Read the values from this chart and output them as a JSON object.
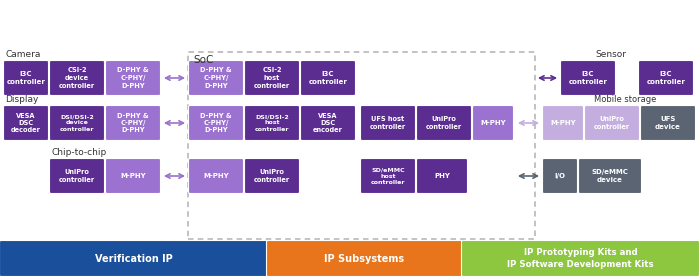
{
  "title": "SoC",
  "dark_purple": "#5c2d91",
  "mid_purple": "#9b72cf",
  "light_purple": "#c4aee0",
  "dark_gray": "#5a6472",
  "blue_bar": "#1a4f9c",
  "orange_bar": "#e8741c",
  "green_bar": "#8dc63f",
  "bar_labels": [
    "Verification IP",
    "IP Subsystems",
    "IP Prototyping Kits and\nIP Software Development Kits"
  ],
  "camera_label": "Camera",
  "display_label": "Display",
  "chip_label": "Chip-to-chip",
  "sensor_label": "Sensor",
  "mobile_label": "Mobile storage",
  "soc_label": "SoC"
}
